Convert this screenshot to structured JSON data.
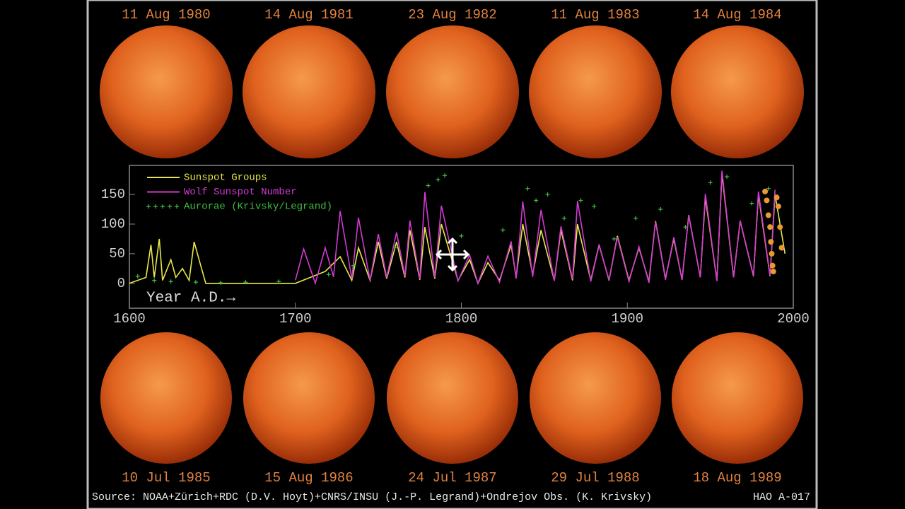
{
  "header_images": [
    {
      "label": "11 Aug 1980"
    },
    {
      "label": "14 Aug 1981"
    },
    {
      "label": "23 Aug 1982"
    },
    {
      "label": "11 Aug 1983"
    },
    {
      "label": "14 Aug 1984"
    }
  ],
  "footer_images": [
    {
      "label": "10 Jul 1985"
    },
    {
      "label": "15 Aug 1986"
    },
    {
      "label": "24 Jul 1987"
    },
    {
      "label": "29 Jul 1988"
    },
    {
      "label": "18 Aug 1989"
    }
  ],
  "source": "Source: NOAA+Zürich+RDC (D.V. Hoyt)+CNRS/INSU (J.-P. Legrand)+Ondrejov Obs. (K. Krivsky)",
  "figure_id": "HAO A-017",
  "chart_data": {
    "type": "line",
    "annotation": "Year A.D.→",
    "xlim": [
      1600,
      2000
    ],
    "xticks": [
      1600,
      1700,
      1800,
      1900,
      2000
    ],
    "ylim": [
      -42,
      199
    ],
    "yticks": [
      0,
      50,
      100,
      150
    ],
    "series": [
      {
        "name": "Sunspot Groups",
        "color": "#e8e84a",
        "mode": "line",
        "x": [
          1600,
          1610,
          1613,
          1615,
          1618,
          1620,
          1625,
          1628,
          1632,
          1636,
          1639,
          1643,
          1646,
          1700,
          1718,
          1727,
          1734,
          1738,
          1745,
          1750,
          1755,
          1761,
          1766,
          1769,
          1775,
          1778,
          1784,
          1788,
          1798,
          1805,
          1810,
          1816,
          1823,
          1830,
          1833,
          1837,
          1843,
          1848,
          1856,
          1860,
          1867,
          1870,
          1878,
          1883,
          1889,
          1894,
          1901,
          1907,
          1913,
          1917,
          1923,
          1928,
          1933,
          1937,
          1944,
          1947,
          1954,
          1957,
          1964,
          1968,
          1976,
          1979,
          1986,
          1989,
          1995
        ],
        "values": [
          0,
          10,
          65,
          10,
          75,
          5,
          40,
          10,
          25,
          5,
          70,
          30,
          0,
          0,
          20,
          45,
          5,
          60,
          5,
          70,
          8,
          70,
          10,
          90,
          6,
          95,
          8,
          100,
          5,
          40,
          0,
          35,
          5,
          65,
          10,
          100,
          15,
          90,
          5,
          90,
          5,
          100,
          5,
          65,
          5,
          80,
          5,
          60,
          3,
          105,
          8,
          75,
          6,
          115,
          10,
          145,
          4,
          185,
          10,
          105,
          12,
          150,
          12,
          150,
          50
        ]
      },
      {
        "name": "Wolf Sunspot Number",
        "color": "#d23ad2",
        "mode": "line",
        "x": [
          1700,
          1705,
          1712,
          1718,
          1723,
          1727,
          1734,
          1738,
          1745,
          1750,
          1755,
          1761,
          1766,
          1769,
          1775,
          1778,
          1784,
          1788,
          1798,
          1805,
          1810,
          1816,
          1823,
          1830,
          1833,
          1837,
          1843,
          1848,
          1856,
          1860,
          1867,
          1870,
          1878,
          1883,
          1889,
          1894,
          1901,
          1907,
          1913,
          1917,
          1923,
          1928,
          1933,
          1937,
          1944,
          1947,
          1954,
          1957,
          1964,
          1968,
          1976,
          1979,
          1986,
          1989
        ],
        "values": [
          5,
          58,
          0,
          60,
          11,
          122,
          8,
          111,
          5,
          83,
          10,
          86,
          12,
          106,
          7,
          154,
          10,
          131,
          4,
          48,
          0,
          46,
          2,
          71,
          8,
          138,
          11,
          124,
          4,
          96,
          7,
          139,
          3,
          64,
          6,
          78,
          3,
          62,
          1,
          104,
          6,
          78,
          6,
          114,
          10,
          151,
          4,
          190,
          10,
          106,
          13,
          155,
          13,
          158
        ]
      },
      {
        "name": "Aurorae (Krivsky/Legrand)",
        "color": "#3fbf3f",
        "mode": "markers",
        "x": [
          1605,
          1615,
          1625,
          1640,
          1655,
          1670,
          1690,
          1720,
          1735,
          1760,
          1780,
          1786,
          1790,
          1800,
          1825,
          1840,
          1845,
          1852,
          1862,
          1872,
          1880,
          1892,
          1905,
          1920,
          1935,
          1950,
          1960,
          1975,
          1985
        ],
        "values": [
          12,
          5,
          3,
          2,
          1,
          2,
          3,
          15,
          30,
          60,
          165,
          175,
          182,
          80,
          90,
          160,
          140,
          150,
          110,
          140,
          130,
          75,
          110,
          125,
          95,
          170,
          180,
          135,
          160
        ]
      },
      {
        "color": "#e89a30",
        "mode": "dots",
        "x": [
          1983,
          1984,
          1985,
          1986,
          1986.5,
          1987,
          1987.5,
          1988,
          1990,
          1991,
          1992,
          1993
        ],
        "values": [
          155,
          140,
          115,
          95,
          70,
          50,
          30,
          20,
          145,
          130,
          95,
          60
        ]
      }
    ]
  }
}
